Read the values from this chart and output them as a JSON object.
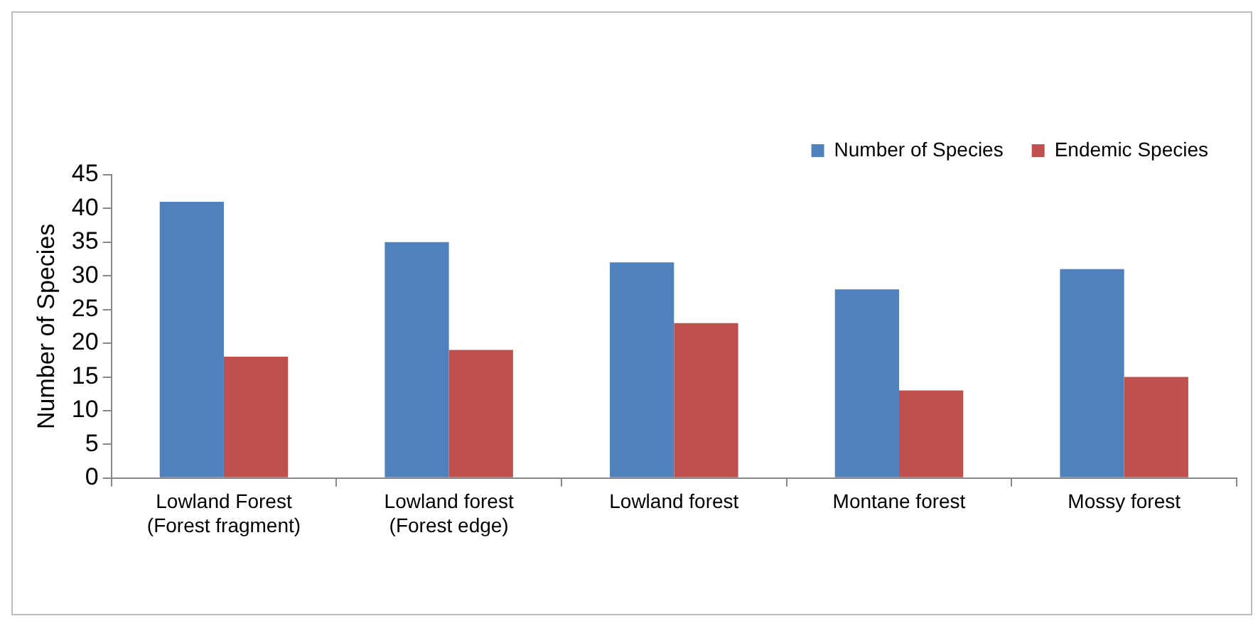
{
  "chart_data": {
    "type": "bar",
    "ylabel": "Number of Species",
    "categories": [
      "Lowland Forest (Forest fragment)",
      "Lowland forest (Forest edge)",
      "Lowland forest",
      "Montane forest",
      "Mossy forest"
    ],
    "series": [
      {
        "name": "Number of Species",
        "color": "#4f81bd",
        "values": [
          41,
          35,
          32,
          28,
          31
        ]
      },
      {
        "name": "Endemic Species",
        "color": "#c0504d",
        "values": [
          18,
          19,
          23,
          13,
          15
        ]
      }
    ],
    "ylim": [
      0,
      45
    ],
    "yticks": [
      0,
      5,
      10,
      15,
      20,
      25,
      30,
      35,
      40,
      45
    ],
    "grid": false,
    "legend": "top"
  }
}
